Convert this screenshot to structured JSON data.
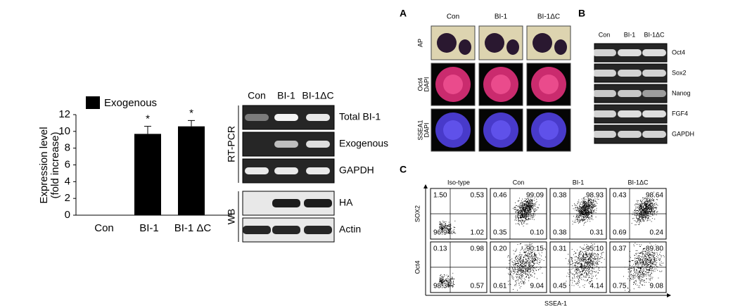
{
  "chart_data": {
    "type": "bar",
    "ylabel": [
      "Expression level",
      "(fold increase)"
    ],
    "categories": [
      "Con",
      "BI-1",
      "BI-1 ΔC"
    ],
    "series": [
      {
        "name": "Exogenous",
        "color": "#000000",
        "values": [
          0,
          9.7,
          10.6
        ],
        "errors": [
          0,
          0.9,
          0.7
        ]
      }
    ],
    "annotations": [
      null,
      "*",
      "*"
    ],
    "ylim": [
      0,
      12
    ],
    "yticks": [
      0,
      2,
      4,
      6,
      8,
      10,
      12
    ]
  },
  "blot": {
    "columns": [
      "Con",
      "BI-1",
      "BI-1ΔC"
    ],
    "groups": [
      {
        "label": "RT-PCR",
        "rows": [
          "Total BI-1",
          "Exogenous",
          "GAPDH"
        ]
      },
      {
        "label": "WB",
        "rows": [
          "HA",
          "Actin"
        ]
      }
    ]
  },
  "panel_a": {
    "letter": "A",
    "columns": [
      "Con",
      "BI-1",
      "BI-1ΔC"
    ],
    "rows": [
      [
        "AP"
      ],
      [
        "Oct4",
        "DAPI"
      ],
      [
        "SSEA1",
        "DAPI"
      ]
    ]
  },
  "panel_b": {
    "letter": "B",
    "columns": [
      "Con",
      "BI-1",
      "BI-1ΔC"
    ],
    "rows": [
      "Oct4",
      "Sox2",
      "Nanog",
      "FGF4",
      "GAPDH"
    ]
  },
  "panel_c": {
    "letter": "C",
    "columns": [
      "Iso-type",
      "Con",
      "BI-1",
      "BI-1ΔC"
    ],
    "xlabel": "SSEA-1",
    "rows": [
      {
        "label": "SOX2",
        "plots": [
          [
            "1.50",
            "0.53",
            "96.9",
            "1.02"
          ],
          [
            "0.46",
            "99.09",
            "0.35",
            "0.10"
          ],
          [
            "0.38",
            "98.93",
            "0.38",
            "0.31"
          ],
          [
            "0.43",
            "98.64",
            "0.69",
            "0.24"
          ]
        ]
      },
      {
        "label": "Oct4",
        "plots": [
          [
            "0.13",
            "0.98",
            "98.3",
            "0.57"
          ],
          [
            "0.20",
            "90.15",
            "0.61",
            "9.04"
          ],
          [
            "0.31",
            "95.10",
            "0.45",
            "4.14"
          ],
          [
            "0.37",
            "89.80",
            "0.75",
            "9.08"
          ]
        ]
      }
    ]
  }
}
